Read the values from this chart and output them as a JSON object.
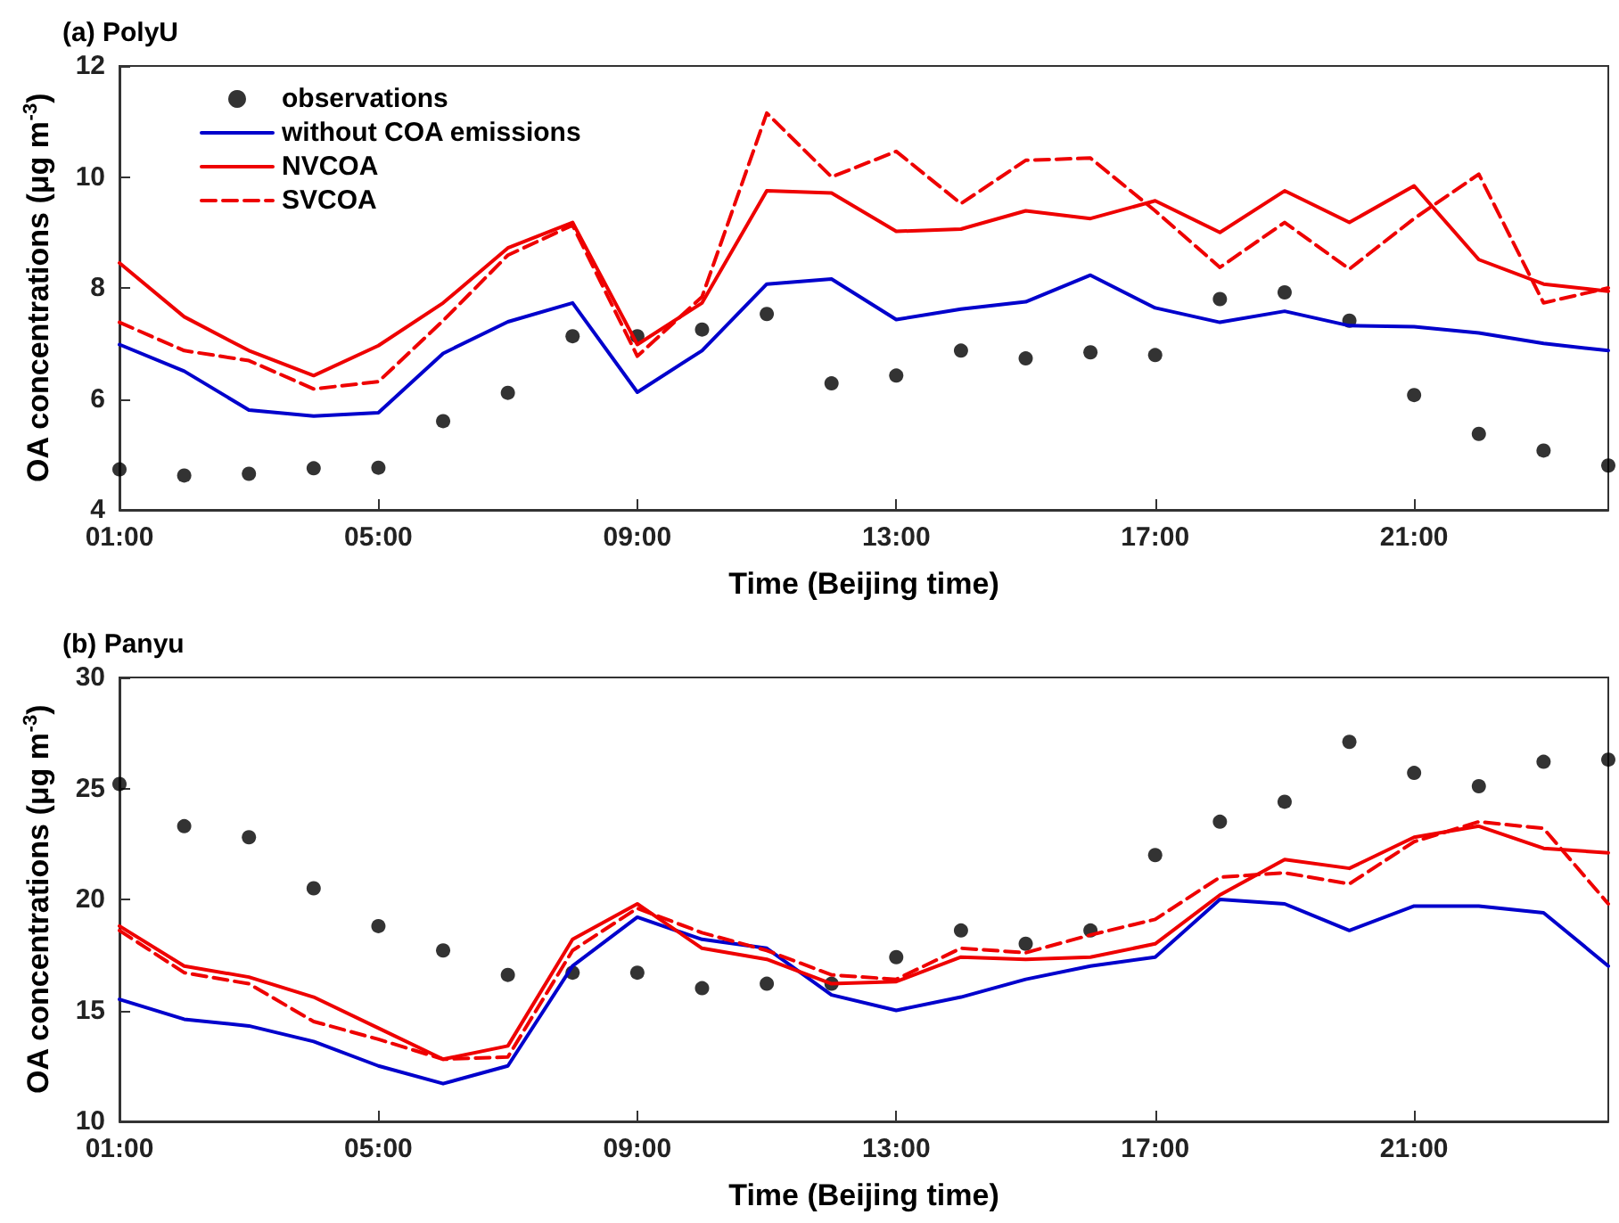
{
  "chart_data": [
    {
      "type": "line",
      "title": "(a) PolyU",
      "xlabel": "Time (Beijing time)",
      "ylabel": "OA concentrations (μg m$^{-3}$)",
      "x": [
        1,
        2,
        3,
        4,
        5,
        6,
        7,
        8,
        9,
        10,
        11,
        12,
        13,
        14,
        15,
        16,
        17,
        18,
        19,
        20,
        21,
        22,
        23,
        24
      ],
      "xlim": [
        1,
        24
      ],
      "xticks": [
        {
          "value": 1,
          "label": "01:00"
        },
        {
          "value": 5,
          "label": "05:00"
        },
        {
          "value": 9,
          "label": "09:00"
        },
        {
          "value": 13,
          "label": "13:00"
        },
        {
          "value": 17,
          "label": "17:00"
        },
        {
          "value": 21,
          "label": "21:00"
        }
      ],
      "ylim": [
        4,
        12
      ],
      "yticks": [
        4,
        6,
        8,
        10,
        12
      ],
      "legend": "top left",
      "grid": false,
      "series": [
        {
          "name": "observations",
          "type": "scatter",
          "marker": "circle",
          "color": "#000000",
          "values": [
            4.73,
            4.62,
            4.65,
            4.75,
            4.76,
            5.6,
            6.11,
            7.13,
            7.13,
            7.25,
            7.53,
            6.28,
            6.42,
            6.87,
            6.73,
            6.84,
            6.79,
            7.8,
            7.92,
            7.41,
            6.07,
            5.37,
            5.07,
            4.8
          ]
        },
        {
          "name": "without COA emissions",
          "line_style": "solid",
          "color": "#0000cc",
          "values": [
            6.98,
            6.5,
            5.8,
            5.69,
            5.75,
            6.82,
            7.39,
            7.73,
            6.12,
            6.87,
            8.07,
            8.16,
            7.43,
            7.62,
            7.75,
            8.23,
            7.64,
            7.38,
            7.58,
            7.32,
            7.3,
            7.19,
            7.0,
            6.87
          ]
        },
        {
          "name": "NVCOA",
          "line_style": "solid",
          "color": "#ee0000",
          "values": [
            8.45,
            7.48,
            6.87,
            6.42,
            6.96,
            7.73,
            8.72,
            9.18,
            6.98,
            7.73,
            9.75,
            9.71,
            9.02,
            9.06,
            9.39,
            9.25,
            9.57,
            9.0,
            9.75,
            9.18,
            9.84,
            8.51,
            8.07,
            7.94
          ]
        },
        {
          "name": "SVCOA",
          "line_style": "dashed",
          "color": "#ee0000",
          "values": [
            7.38,
            6.87,
            6.69,
            6.18,
            6.31,
            7.41,
            8.59,
            9.13,
            6.77,
            7.84,
            11.15,
            10.0,
            10.46,
            9.52,
            10.3,
            10.34,
            9.39,
            8.37,
            9.18,
            8.34,
            9.25,
            10.05,
            7.73,
            8.0
          ]
        }
      ]
    },
    {
      "type": "line",
      "title": "(b) Panyu",
      "xlabel": "Time (Beijing time)",
      "ylabel": "OA concentrations (μg m$^{-3}$)",
      "x": [
        1,
        2,
        3,
        4,
        5,
        6,
        7,
        8,
        9,
        10,
        11,
        12,
        13,
        14,
        15,
        16,
        17,
        18,
        19,
        20,
        21,
        22,
        23,
        24
      ],
      "xlim": [
        1,
        24
      ],
      "xticks": [
        {
          "value": 1,
          "label": "01:00"
        },
        {
          "value": 5,
          "label": "05:00"
        },
        {
          "value": 9,
          "label": "09:00"
        },
        {
          "value": 13,
          "label": "13:00"
        },
        {
          "value": 17,
          "label": "17:00"
        },
        {
          "value": 21,
          "label": "21:00"
        }
      ],
      "ylim": [
        10,
        30
      ],
      "yticks": [
        10,
        15,
        20,
        25,
        30
      ],
      "grid": false,
      "series": [
        {
          "type": "scatter",
          "marker": "circle",
          "color": "#000000",
          "values": [
            25.2,
            23.3,
            22.8,
            20.5,
            18.8,
            17.7,
            16.6,
            16.7,
            16.7,
            16.0,
            16.2,
            16.2,
            17.4,
            18.6,
            18.0,
            18.6,
            22.0,
            23.5,
            24.4,
            27.1,
            25.7,
            25.1,
            26.2,
            26.3
          ]
        },
        {
          "line_style": "solid",
          "color": "#0000cc",
          "values": [
            15.5,
            14.6,
            14.3,
            13.6,
            12.5,
            11.7,
            12.5,
            17.0,
            19.2,
            18.2,
            17.8,
            15.7,
            15.0,
            15.6,
            16.4,
            17.0,
            17.4,
            20.0,
            19.8,
            18.6,
            19.7,
            19.7,
            19.4,
            17.0
          ]
        },
        {
          "line_style": "solid",
          "color": "#ee0000",
          "values": [
            18.8,
            17.0,
            16.5,
            15.6,
            14.2,
            12.8,
            13.4,
            18.2,
            19.8,
            17.8,
            17.3,
            16.2,
            16.3,
            17.4,
            17.3,
            17.4,
            18.0,
            20.2,
            21.8,
            21.4,
            22.8,
            23.3,
            22.3,
            22.1
          ]
        },
        {
          "line_style": "dashed",
          "color": "#ee0000",
          "values": [
            18.6,
            16.7,
            16.2,
            14.5,
            13.7,
            12.8,
            12.9,
            17.7,
            19.6,
            18.5,
            17.7,
            16.6,
            16.4,
            17.8,
            17.6,
            18.4,
            19.1,
            21.0,
            21.2,
            20.7,
            22.6,
            23.5,
            23.2,
            19.8
          ]
        }
      ]
    }
  ]
}
